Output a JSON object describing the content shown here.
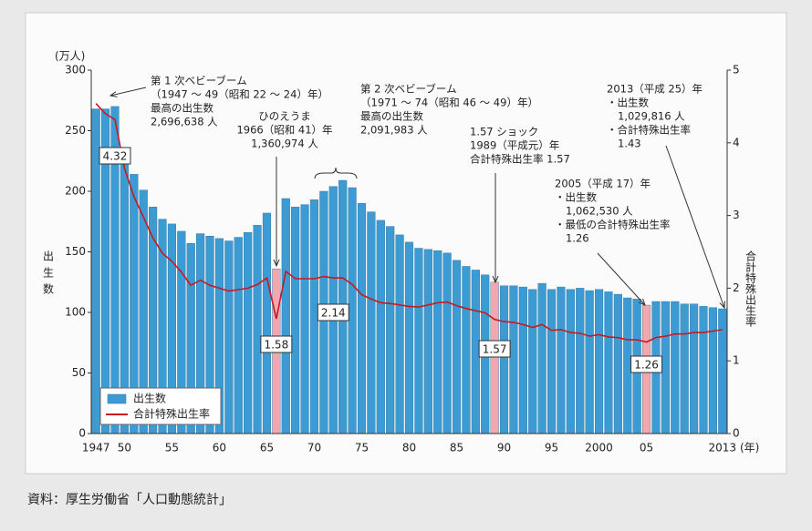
{
  "chart_data": {
    "type": "bar-line",
    "y_unit": "(万人)",
    "y_label": "出生数",
    "y2_label": "合計特殊出生率",
    "x_unit": "(年)",
    "source": "資料：厚生労働省「人口動態統計」",
    "categories": [
      "1947",
      null,
      null,
      "50",
      null,
      null,
      null,
      null,
      "55",
      null,
      null,
      null,
      null,
      "60",
      null,
      null,
      null,
      null,
      "65",
      null,
      null,
      null,
      null,
      "70",
      null,
      null,
      null,
      null,
      "75",
      null,
      null,
      null,
      null,
      "80",
      null,
      null,
      null,
      null,
      "85",
      null,
      null,
      null,
      null,
      "90",
      null,
      null,
      null,
      null,
      "95",
      null,
      null,
      null,
      null,
      "2000",
      null,
      null,
      null,
      null,
      "05",
      null,
      null,
      null,
      null,
      null,
      null,
      null,
      "2013"
    ],
    "ylim": [
      0,
      300
    ],
    "yticks": [
      0,
      50,
      100,
      150,
      200,
      250,
      300
    ],
    "y2lim": [
      0,
      5
    ],
    "y2ticks": [
      0,
      1,
      2,
      3,
      4,
      5
    ],
    "series": [
      {
        "name": "出生数",
        "type": "bar",
        "color": "#3d9bd4",
        "colors": [
          "#3d9bd4",
          "#3d9bd4",
          "#3d9bd4",
          "#3d9bd4",
          "#3d9bd4",
          "#3d9bd4",
          "#3d9bd4",
          "#3d9bd4",
          "#3d9bd4",
          "#3d9bd4",
          "#3d9bd4",
          "#3d9bd4",
          "#3d9bd4",
          "#3d9bd4",
          "#3d9bd4",
          "#3d9bd4",
          "#3d9bd4",
          "#3d9bd4",
          "#3d9bd4",
          "#f2a6ad",
          "#3d9bd4",
          "#3d9bd4",
          "#3d9bd4",
          "#3d9bd4",
          "#3d9bd4",
          "#3d9bd4",
          "#3d9bd4",
          "#3d9bd4",
          "#3d9bd4",
          "#3d9bd4",
          "#3d9bd4",
          "#3d9bd4",
          "#3d9bd4",
          "#3d9bd4",
          "#3d9bd4",
          "#3d9bd4",
          "#3d9bd4",
          "#3d9bd4",
          "#3d9bd4",
          "#3d9bd4",
          "#3d9bd4",
          "#3d9bd4",
          "#f2a6ad",
          "#3d9bd4",
          "#3d9bd4",
          "#3d9bd4",
          "#3d9bd4",
          "#3d9bd4",
          "#3d9bd4",
          "#3d9bd4",
          "#3d9bd4",
          "#3d9bd4",
          "#3d9bd4",
          "#3d9bd4",
          "#3d9bd4",
          "#3d9bd4",
          "#3d9bd4",
          "#3d9bd4",
          "#f2a6ad",
          "#3d9bd4",
          "#3d9bd4",
          "#3d9bd4",
          "#3d9bd4",
          "#3d9bd4",
          "#3d9bd4",
          "#3d9bd4",
          "#3d9bd4"
        ],
        "values": [
          268,
          268,
          270,
          234,
          214,
          201,
          187,
          177,
          173,
          167,
          157,
          165,
          163,
          161,
          159,
          162,
          166,
          172,
          182,
          136,
          194,
          187,
          189,
          193,
          200,
          204,
          209,
          203,
          190,
          183,
          176,
          171,
          164,
          158,
          153,
          152,
          151,
          149,
          143,
          138,
          135,
          131,
          125,
          122,
          122,
          121,
          119,
          124,
          119,
          121,
          119,
          120,
          118,
          119,
          117,
          115,
          112,
          111,
          106,
          109,
          109,
          109,
          107,
          107,
          105,
          104,
          103
        ]
      },
      {
        "name": "合計特殊出生率",
        "type": "line",
        "axis": "y2",
        "color": "#c8191e",
        "values": [
          4.54,
          4.4,
          4.32,
          3.65,
          3.26,
          2.98,
          2.69,
          2.48,
          2.37,
          2.22,
          2.04,
          2.11,
          2.04,
          2.0,
          1.96,
          1.98,
          2.0,
          2.05,
          2.14,
          1.58,
          2.23,
          2.13,
          2.13,
          2.13,
          2.16,
          2.14,
          2.14,
          2.05,
          1.91,
          1.85,
          1.8,
          1.79,
          1.77,
          1.75,
          1.74,
          1.77,
          1.8,
          1.81,
          1.76,
          1.72,
          1.69,
          1.66,
          1.57,
          1.54,
          1.53,
          1.5,
          1.46,
          1.5,
          1.42,
          1.43,
          1.39,
          1.38,
          1.34,
          1.36,
          1.33,
          1.32,
          1.29,
          1.29,
          1.26,
          1.32,
          1.34,
          1.37,
          1.37,
          1.39,
          1.39,
          1.41,
          1.43
        ],
        "value_labels": [
          null,
          null,
          "4.32",
          null,
          null,
          null,
          null,
          null,
          null,
          null,
          null,
          null,
          null,
          null,
          null,
          null,
          null,
          null,
          null,
          "1.58",
          null,
          null,
          null,
          null,
          null,
          "2.14",
          null,
          null,
          null,
          null,
          null,
          null,
          null,
          null,
          null,
          null,
          null,
          null,
          null,
          null,
          null,
          null,
          "1.57",
          null,
          null,
          null,
          null,
          null,
          null,
          null,
          null,
          null,
          null,
          null,
          null,
          null,
          null,
          null,
          "1.26",
          null,
          null,
          null,
          null,
          null,
          null,
          null,
          null
        ]
      }
    ],
    "annotations": [
      {
        "lines": [
          "第 1 次ベビーブーム",
          "（1947 ～ 49（昭和 22 ～ 24）年）",
          "最高の出生数",
          "2,696,638 人"
        ]
      },
      {
        "lines": [
          "ひのえうま",
          "1966（昭和 41）年",
          "1,360,974 人"
        ]
      },
      {
        "lines": [
          "第 2 次ベビーブーム",
          "（1971 ～ 74（昭和 46 ～ 49）年）",
          "最高の出生数",
          "2,091,983 人"
        ]
      },
      {
        "lines": [
          "1.57 ショック",
          "1989（平成元）年",
          "合計特殊出生率 1.57"
        ]
      },
      {
        "lines": [
          "2005（平成 17）年",
          "・出生数",
          "1,062,530 人",
          "・最低の合計特殊出生率",
          "1.26"
        ]
      },
      {
        "lines": [
          "2013（平成 25）年",
          "・出生数",
          "1,029,816 人",
          "・合計特殊出生率",
          "1.43"
        ]
      }
    ]
  }
}
